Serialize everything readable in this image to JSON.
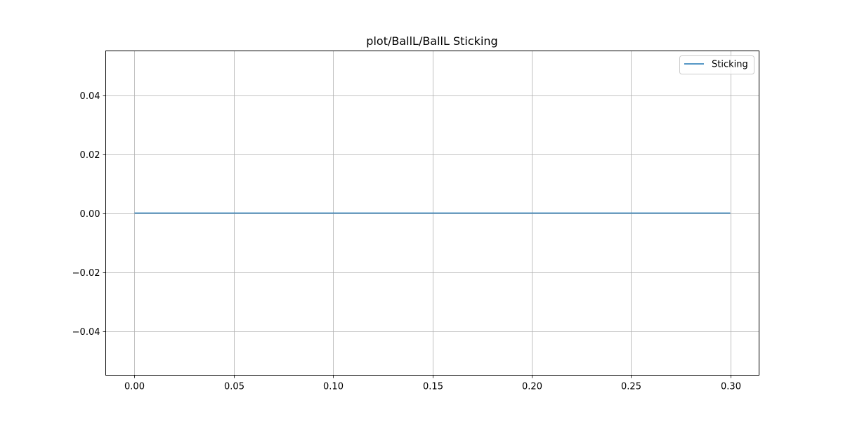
{
  "chart_data": {
    "type": "line",
    "title": "plot/BallL/BallL Sticking",
    "xlabel": "",
    "ylabel": "",
    "xlim": [
      -0.0145,
      0.3145
    ],
    "ylim": [
      -0.055,
      0.055
    ],
    "xticks": [
      0.0,
      0.05,
      0.1,
      0.15,
      0.2,
      0.25,
      0.3
    ],
    "xtick_labels": [
      "0.00",
      "0.05",
      "0.10",
      "0.15",
      "0.20",
      "0.25",
      "0.30"
    ],
    "yticks": [
      -0.04,
      -0.02,
      0.0,
      0.02,
      0.04
    ],
    "ytick_labels": [
      "−0.04",
      "−0.02",
      "0.00",
      "0.02",
      "0.04"
    ],
    "grid": true,
    "legend": {
      "placement": "top-right"
    },
    "series": [
      {
        "name": "Sticking",
        "color": "#1f77b4",
        "x": [
          0.0,
          0.05,
          0.1,
          0.15,
          0.2,
          0.25,
          0.3
        ],
        "y": [
          0.0,
          0.0,
          0.0,
          0.0,
          0.0,
          0.0,
          0.0
        ]
      }
    ]
  }
}
